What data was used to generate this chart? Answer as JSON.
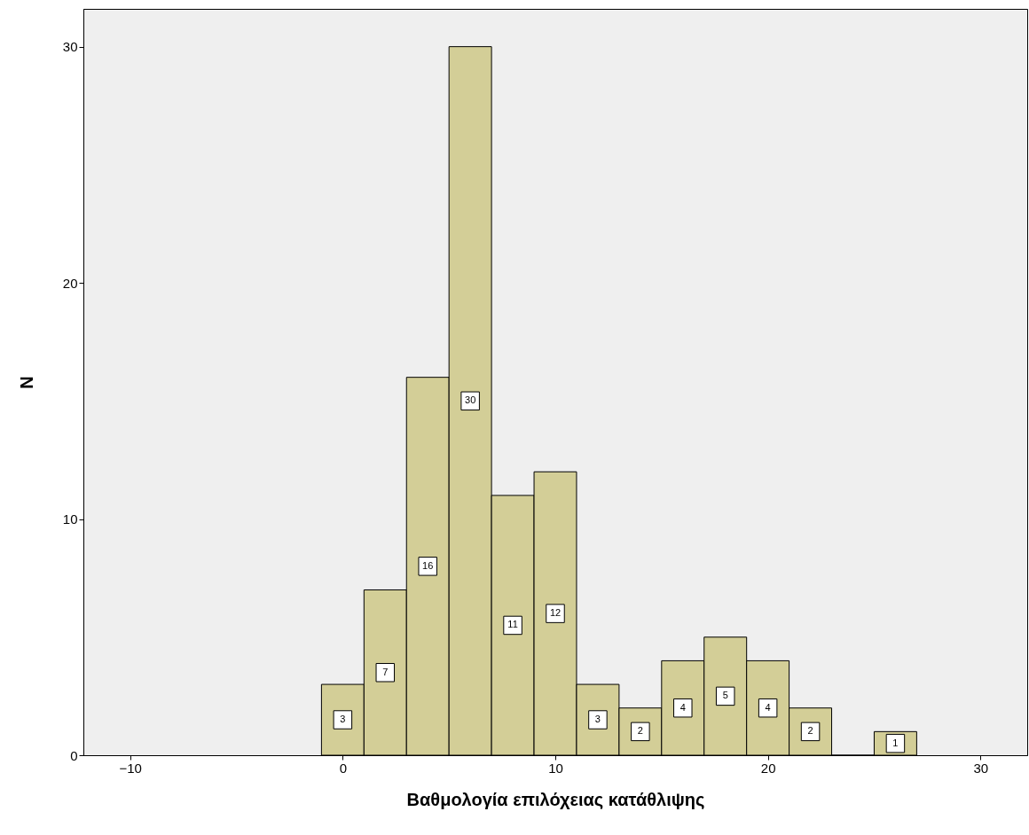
{
  "chart_data": {
    "type": "histogram",
    "xlabel": "Βαθμολογία επιλόχειας κατάθλιψης",
    "ylabel": "N",
    "bins": [
      -1,
      1,
      3,
      5,
      7,
      9,
      11,
      13,
      15,
      17,
      19,
      21,
      23,
      25,
      27
    ],
    "values": [
      3,
      7,
      16,
      30,
      11,
      12,
      3,
      2,
      4,
      5,
      4,
      2,
      0,
      1
    ],
    "color": "#d3ce97",
    "xlim": [
      -12.2,
      32.2
    ],
    "xticks": [
      -10,
      0,
      10,
      20,
      30
    ],
    "ylim": [
      0,
      31.6
    ],
    "yticks": [
      0,
      10,
      20,
      30
    ],
    "value_labels": [
      "3",
      "7",
      "16",
      "30",
      "11",
      "12",
      "3",
      "2",
      "4",
      "5",
      "4",
      "2",
      null,
      "1"
    ],
    "grid": false
  }
}
